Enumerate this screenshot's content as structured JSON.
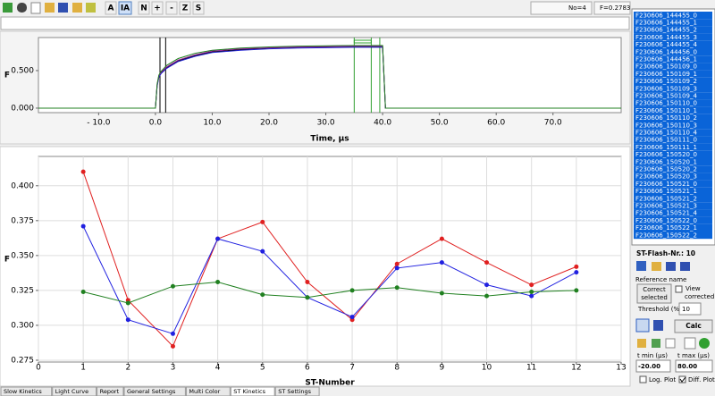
{
  "toolbar": {
    "buttons": [
      "A",
      "IA",
      "N",
      "+",
      "-",
      "Z",
      "S"
    ],
    "status_no": "No=4",
    "status_f": "F=0.2783"
  },
  "top_chart": {
    "type": "line",
    "x_label": "Time, µs",
    "y_label": "F",
    "x": [
      -20.6,
      0,
      0.3,
      0.6,
      1,
      2,
      4,
      7,
      10,
      15,
      20,
      25,
      30,
      35,
      40,
      40.5,
      82
    ],
    "series": [
      {
        "color": "#000000",
        "values": [
          0,
          0,
          0.3,
          0.42,
          0.47,
          0.54,
          0.63,
          0.7,
          0.75,
          0.78,
          0.8,
          0.81,
          0.815,
          0.82,
          0.82,
          0,
          0
        ]
      },
      {
        "color": "#2020d0",
        "values": [
          0,
          0,
          0.29,
          0.41,
          0.46,
          0.53,
          0.62,
          0.69,
          0.74,
          0.77,
          0.79,
          0.8,
          0.805,
          0.81,
          0.81,
          0,
          0
        ]
      },
      {
        "color": "#a020a0",
        "values": [
          0,
          0,
          0.31,
          0.43,
          0.48,
          0.55,
          0.64,
          0.71,
          0.76,
          0.79,
          0.805,
          0.815,
          0.82,
          0.825,
          0.825,
          0,
          0
        ]
      },
      {
        "color": "#208020",
        "values": [
          0,
          0,
          0.32,
          0.44,
          0.49,
          0.57,
          0.66,
          0.73,
          0.77,
          0.8,
          0.815,
          0.825,
          0.83,
          0.835,
          0.835,
          0,
          0
        ]
      }
    ],
    "xlim": [
      -20.6,
      82
    ],
    "ylim": [
      -0.06,
      0.94
    ],
    "xticks": [
      {
        "value": -10,
        "label": "- 10.0"
      },
      {
        "value": 0,
        "label": "0.0"
      },
      {
        "value": 10,
        "label": "10.0"
      },
      {
        "value": 20,
        "label": "20.0"
      },
      {
        "value": 30,
        "label": "30.0"
      },
      {
        "value": 40,
        "label": "40.0"
      },
      {
        "value": 50,
        "label": "50.0"
      },
      {
        "value": 60,
        "label": "60.0"
      },
      {
        "value": 70,
        "label": "70.0"
      }
    ],
    "yticks": [
      {
        "value": 0,
        "label": "0.000"
      },
      {
        "value": 0.5,
        "label": "0.500"
      }
    ],
    "cursors": [
      0.8,
      1.8
    ],
    "window": [
      35,
      38,
      39.5
    ]
  },
  "bottom_chart": {
    "type": "line",
    "markers": true,
    "grid": true,
    "x_label": "ST-Number",
    "y_label": "F",
    "x": [
      1,
      2,
      3,
      4,
      5,
      6,
      7,
      8,
      9,
      10,
      11,
      12
    ],
    "series": [
      {
        "color": "#e02020",
        "values": [
          0.41,
          0.318,
          0.285,
          0.362,
          0.374,
          0.331,
          0.304,
          0.344,
          0.362,
          0.345,
          0.329,
          0.342
        ]
      },
      {
        "color": "#2020e0",
        "values": [
          0.371,
          0.304,
          0.294,
          0.362,
          0.353,
          0.32,
          0.306,
          0.341,
          0.345,
          0.329,
          0.321,
          0.338
        ]
      },
      {
        "color": "#208020",
        "values": [
          0.324,
          0.316,
          0.328,
          0.331,
          0.322,
          0.32,
          0.325,
          0.327,
          0.323,
          0.321,
          0.324,
          0.325
        ]
      }
    ],
    "xlim": [
      0,
      13
    ],
    "ylim": [
      0.2737,
      0.421
    ],
    "xticks": [
      0,
      1,
      2,
      3,
      4,
      5,
      6,
      7,
      8,
      9,
      10,
      11,
      12,
      13
    ],
    "yticks": [
      0.275,
      {
        "value": 0.3,
        "label": "0.300"
      },
      0.325,
      {
        "value": 0.35,
        "label": "0.350"
      },
      0.375,
      {
        "value": 0.4,
        "label": "0.400"
      }
    ]
  },
  "file_list": [
    "F230606_144455_0",
    "F230606_144455_1",
    "F230606_144455_2",
    "F230606_144455_3",
    "F230606_144455_4",
    "F230606_144456_0",
    "F230606_144456_1",
    "F230606_150109_0",
    "F230606_150109_1",
    "F230606_150109_2",
    "F230606_150109_3",
    "F230606_150109_4",
    "F230606_150110_0",
    "F230606_150110_1",
    "F230606_150110_2",
    "F230606_150110_3",
    "F230606_150110_4",
    "F230606_150111_0",
    "F230606_150111_1",
    "F230606_150520_0",
    "F230606_150520_1",
    "F230606_150520_2",
    "F230606_150520_3",
    "F230606_150521_0",
    "F230606_150521_1",
    "F230606_150521_2",
    "F230606_150521_3",
    "F230606_150521_4",
    "F230606_150522_0",
    "F230606_150522_1",
    "F230606_150522_2"
  ],
  "side_panel": {
    "flash_nr": "ST-Flash-Nr.: 10",
    "reference_label": "Reference name",
    "correct_button": [
      "Correct",
      "selected"
    ],
    "view_corrected": [
      "View",
      "corrected"
    ],
    "threshold_label": "Threshold (%)",
    "threshold_value": "10",
    "calc_button": "Calc",
    "tmin_label": "t min (µs)",
    "tmax_label": "t max (µs)",
    "tmin_value": "-20.00",
    "tmax_value": "80.00",
    "log_plot": "Log. Plot",
    "diff_plot": "Diff. Plot"
  },
  "tabs": [
    "Slow Kinetics",
    "Light Curve",
    "Report",
    "General Settings",
    "Multi Color",
    "ST Kinetics",
    "ST Settings"
  ],
  "active_tab": 5
}
